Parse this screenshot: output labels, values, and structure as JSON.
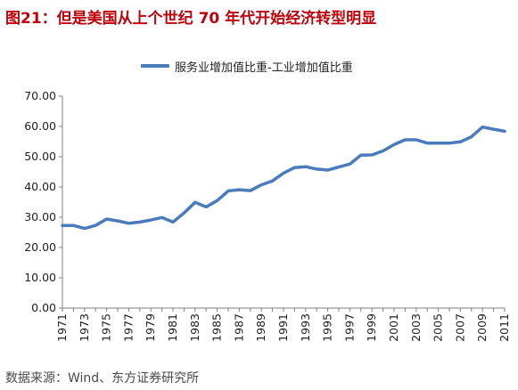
{
  "figure_title": "图21：但是美国从上个世纪 70 年代开始经济转型明显",
  "source": "数据来源：Wind、东方证券研究所",
  "chart_data": {
    "type": "line",
    "title": "",
    "xlabel": "",
    "ylabel": "",
    "ylim": [
      0,
      70
    ],
    "yticks": [
      "0.00",
      "10.00",
      "20.00",
      "30.00",
      "40.00",
      "50.00",
      "60.00",
      "70.00"
    ],
    "x": [
      1971,
      1972,
      1973,
      1974,
      1975,
      1976,
      1977,
      1978,
      1979,
      1980,
      1981,
      1982,
      1983,
      1984,
      1985,
      1986,
      1987,
      1988,
      1989,
      1990,
      1991,
      1992,
      1993,
      1994,
      1995,
      1996,
      1997,
      1998,
      1999,
      2000,
      2001,
      2002,
      2003,
      2004,
      2005,
      2006,
      2007,
      2008,
      2009,
      2010,
      2011
    ],
    "xtick_labels": [
      "1971",
      "1973",
      "1975",
      "1977",
      "1979",
      "1981",
      "1983",
      "1985",
      "1987",
      "1989",
      "1991",
      "1993",
      "1995",
      "1997",
      "1999",
      "2001",
      "2003",
      "2005",
      "2007",
      "2009",
      "2011"
    ],
    "series": [
      {
        "name": "服务业增加值比重-工业增加值比重",
        "color": "#4a7bbf",
        "values": [
          27.3,
          27.3,
          26.3,
          27.3,
          29.4,
          28.8,
          28.0,
          28.4,
          29.1,
          29.9,
          28.4,
          31.4,
          34.9,
          33.4,
          35.5,
          38.7,
          39.1,
          38.8,
          40.7,
          42.0,
          44.6,
          46.4,
          46.7,
          45.9,
          45.6,
          46.6,
          47.6,
          50.5,
          50.6,
          51.9,
          54.0,
          55.6,
          55.6,
          54.5,
          54.5,
          54.5,
          54.9,
          56.6,
          59.8,
          59.1,
          58.4
        ]
      }
    ],
    "grid": false,
    "legend_position": "top-center"
  }
}
